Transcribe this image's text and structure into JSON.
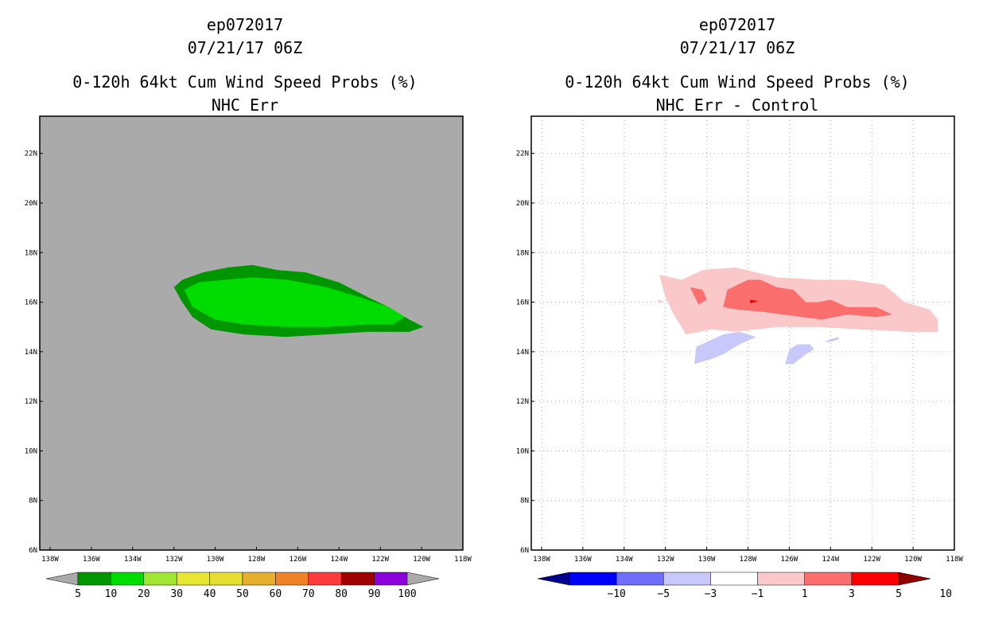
{
  "colors": {
    "land_gray": "#aaaaaa",
    "frame": "#000000",
    "grid": "#aaaaaa"
  },
  "chart_data": [
    {
      "type": "heatmap",
      "panel": "left",
      "title_lines": [
        "ep072017",
        "07/21/17 06Z",
        "0-120h 64kt Cum Wind Speed Probs (%)",
        "NHC Err"
      ],
      "x_axis": {
        "range": [
          -138.5,
          -118
        ],
        "ticks": [
          -138,
          -136,
          -134,
          -132,
          -130,
          -128,
          -126,
          -124,
          -122,
          -120,
          -118
        ],
        "tick_labels": [
          "138W",
          "136W",
          "134W",
          "132W",
          "130W",
          "128W",
          "126W",
          "124W",
          "122W",
          "120W",
          "118W"
        ]
      },
      "y_axis": {
        "range": [
          6,
          23.5
        ],
        "ticks": [
          6,
          8,
          10,
          12,
          14,
          16,
          18,
          20,
          22
        ],
        "tick_labels": [
          "6N",
          "8N",
          "10N",
          "12N",
          "14N",
          "16N",
          "18N",
          "20N",
          "22N"
        ]
      },
      "grid": false,
      "background": "#aaaaaa",
      "contours": [
        {
          "level": "5-10",
          "color": "#009600",
          "polygon": [
            [
              -132,
              16.6
            ],
            [
              -131.6,
              16.9
            ],
            [
              -130.6,
              17.2
            ],
            [
              -129.4,
              17.4
            ],
            [
              -128.2,
              17.5
            ],
            [
              -127,
              17.3
            ],
            [
              -125.6,
              17.2
            ],
            [
              -124,
              16.8
            ],
            [
              -122.6,
              16.2
            ],
            [
              -121.6,
              15.8
            ],
            [
              -120.6,
              15.3
            ],
            [
              -119.9,
              15
            ],
            [
              -120.6,
              14.8
            ],
            [
              -122.6,
              14.8
            ],
            [
              -124.6,
              14.7
            ],
            [
              -126.6,
              14.6
            ],
            [
              -128.6,
              14.7
            ],
            [
              -130.2,
              14.9
            ],
            [
              -131.1,
              15.4
            ],
            [
              -131.6,
              16
            ]
          ]
        },
        {
          "level": "10-20",
          "color": "#00dc00",
          "polygon": [
            [
              -131.5,
              16.5
            ],
            [
              -130.8,
              16.8
            ],
            [
              -129.5,
              16.9
            ],
            [
              -128.2,
              17
            ],
            [
              -126.5,
              16.9
            ],
            [
              -124.6,
              16.6
            ],
            [
              -123,
              16.2
            ],
            [
              -121.6,
              15.8
            ],
            [
              -120.8,
              15.4
            ],
            [
              -121.4,
              15.1
            ],
            [
              -122.6,
              15.1
            ],
            [
              -124.6,
              15
            ],
            [
              -126.6,
              15
            ],
            [
              -128.6,
              15.1
            ],
            [
              -130,
              15.3
            ],
            [
              -131.1,
              15.8
            ]
          ]
        }
      ],
      "colorbar": {
        "colors": [
          "#009600",
          "#00dc00",
          "#a0e632",
          "#e6e632",
          "#e6dc32",
          "#e6af2d",
          "#f08228",
          "#fa3c3c",
          "#a00000",
          "#8c00dc"
        ],
        "labels": [
          "5",
          "10",
          "20",
          "30",
          "40",
          "50",
          "60",
          "70",
          "80",
          "90",
          "100"
        ]
      }
    },
    {
      "type": "heatmap",
      "panel": "right",
      "title_lines": [
        "ep072017",
        "07/21/17 06Z",
        "0-120h 64kt Cum Wind Speed Probs (%)",
        "NHC Err - Control"
      ],
      "x_axis": {
        "range": [
          -138.5,
          -118
        ],
        "ticks": [
          -138,
          -136,
          -134,
          -132,
          -130,
          -128,
          -126,
          -124,
          -122,
          -120,
          -118
        ],
        "tick_labels": [
          "138W",
          "136W",
          "134W",
          "132W",
          "130W",
          "128W",
          "126W",
          "124W",
          "122W",
          "120W",
          "118W"
        ]
      },
      "y_axis": {
        "range": [
          6,
          23.5
        ],
        "ticks": [
          6,
          8,
          10,
          12,
          14,
          16,
          18,
          20,
          22
        ],
        "tick_labels": [
          "6N",
          "8N",
          "10N",
          "12N",
          "14N",
          "16N",
          "18N",
          "20N",
          "22N"
        ]
      },
      "grid": true,
      "background": "#ffffff",
      "contours": [
        {
          "level": "1-3",
          "color": "#fac8c8",
          "polygon": [
            [
              -132.3,
              17.1
            ],
            [
              -131.2,
              16.9
            ],
            [
              -130.2,
              17.3
            ],
            [
              -128.6,
              17.4
            ],
            [
              -127.6,
              17.2
            ],
            [
              -126.6,
              17
            ],
            [
              -124.6,
              16.9
            ],
            [
              -123,
              16.9
            ],
            [
              -121.4,
              16.7
            ],
            [
              -120.4,
              16
            ],
            [
              -119.2,
              15.7
            ],
            [
              -118.8,
              15.3
            ],
            [
              -118.8,
              14.8
            ],
            [
              -120.2,
              14.8
            ],
            [
              -122.6,
              14.9
            ],
            [
              -124.6,
              15
            ],
            [
              -126.6,
              15
            ],
            [
              -128.6,
              14.8
            ],
            [
              -129.8,
              14.9
            ],
            [
              -131,
              14.7
            ],
            [
              -131.6,
              15.5
            ],
            [
              -132,
              16.2
            ]
          ]
        },
        {
          "level": "1-3",
          "color": "#fac8c8",
          "polygon": [
            [
              -132.4,
              16.1
            ],
            [
              -132.1,
              16.05
            ],
            [
              -132.3,
              15.95
            ]
          ]
        },
        {
          "level": "3-5",
          "color": "#fa6e6e",
          "polygon": [
            [
              -130.8,
              16.6
            ],
            [
              -130.2,
              16.5
            ],
            [
              -130,
              16.1
            ],
            [
              -130.4,
              15.9
            ]
          ]
        },
        {
          "level": "3-5",
          "color": "#fa6e6e",
          "polygon": [
            [
              -129,
              16.5
            ],
            [
              -128,
              16.9
            ],
            [
              -127.4,
              16.9
            ],
            [
              -126.6,
              16.6
            ],
            [
              -125.8,
              16.5
            ],
            [
              -125.2,
              16
            ],
            [
              -124.6,
              16
            ],
            [
              -124,
              16.1
            ],
            [
              -123.2,
              15.8
            ],
            [
              -121.8,
              15.8
            ],
            [
              -121,
              15.5
            ],
            [
              -121.8,
              15.4
            ],
            [
              -123.2,
              15.5
            ],
            [
              -124.4,
              15.3
            ],
            [
              -125.4,
              15.4
            ],
            [
              -127.2,
              15.6
            ],
            [
              -128.5,
              15.7
            ],
            [
              -129.2,
              15.8
            ]
          ]
        },
        {
          "level": "5-10",
          "color": "#fa0000",
          "polygon": [
            [
              -127.9,
              16.1
            ],
            [
              -127.5,
              16.05
            ],
            [
              -127.9,
              15.95
            ]
          ]
        },
        {
          "level": "-3--1",
          "color": "#c8c8fa",
          "polygon": [
            [
              -130.5,
              14.2
            ],
            [
              -129.2,
              14.7
            ],
            [
              -128.4,
              14.8
            ],
            [
              -127.6,
              14.6
            ],
            [
              -128.4,
              14.3
            ],
            [
              -129.2,
              13.9
            ],
            [
              -129.8,
              13.7
            ],
            [
              -130.6,
              13.5
            ]
          ]
        },
        {
          "level": "-3--1",
          "color": "#c8c8fa",
          "polygon": [
            [
              -126.2,
              13.5
            ],
            [
              -125.8,
              13.5
            ],
            [
              -125.2,
              13.9
            ],
            [
              -124.8,
              14.1
            ],
            [
              -125,
              14.3
            ],
            [
              -125.6,
              14.3
            ],
            [
              -126,
              14.1
            ]
          ]
        },
        {
          "level": "-3--1",
          "color": "#c8c8fa",
          "polygon": [
            [
              -124.3,
              14.4
            ],
            [
              -124,
              14.5
            ],
            [
              -123.6,
              14.6
            ],
            [
              -123.6,
              14.5
            ],
            [
              -124,
              14.4
            ]
          ]
        }
      ],
      "colorbar": {
        "colors": [
          "#00008c",
          "#0000fa",
          "#6e6efa",
          "#c8c8fa",
          "#ffffff",
          "#fac8c8",
          "#fa6e6e",
          "#fa0000",
          "#8c0000"
        ],
        "labels": [
          "-10",
          "-5",
          "-3",
          "-1",
          "1",
          "3",
          "5",
          "10"
        ]
      }
    }
  ]
}
